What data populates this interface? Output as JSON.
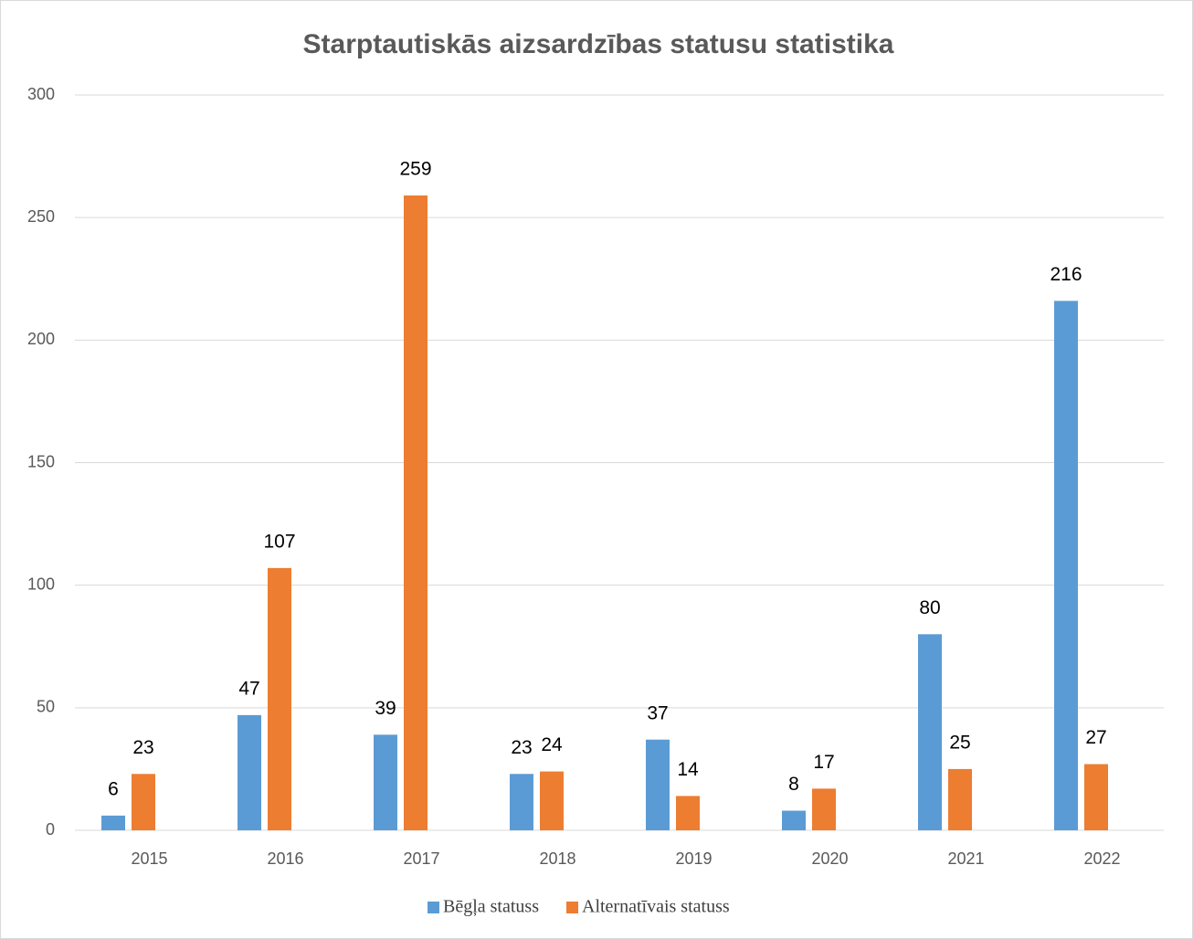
{
  "chart_data": {
    "type": "bar",
    "title": "Starptautiskās aizsardzības statusu statistika",
    "categories": [
      "2015",
      "2016",
      "2017",
      "2018",
      "2019",
      "2020",
      "2021",
      "2022"
    ],
    "series": [
      {
        "name": "Bēgļa statuss",
        "color": "#5b9bd5",
        "values": [
          6,
          47,
          39,
          23,
          37,
          8,
          80,
          216
        ]
      },
      {
        "name": "Alternatīvais statuss",
        "color": "#ed7d31",
        "values": [
          23,
          107,
          259,
          24,
          14,
          17,
          25,
          27
        ]
      }
    ],
    "ylim": [
      0,
      300
    ],
    "yticks": [
      0,
      50,
      100,
      150,
      200,
      250,
      300
    ],
    "grid": true,
    "legend": "bottom"
  }
}
